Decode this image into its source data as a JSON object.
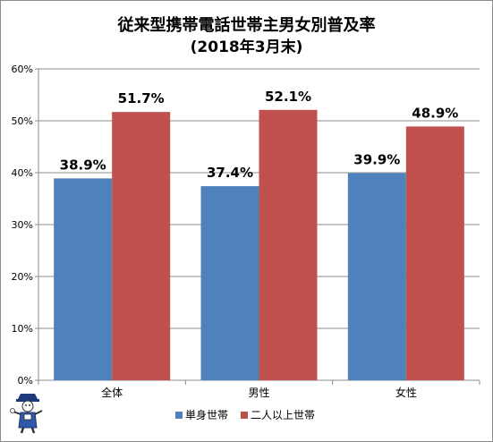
{
  "chart_data": {
    "type": "bar",
    "title": "従来型携帯電話世帯主男女別普及率",
    "subtitle": "(2018年3月末)",
    "categories": [
      "全体",
      "男性",
      "女性"
    ],
    "series": [
      {
        "name": "単身世帯",
        "values": [
          38.9,
          37.4,
          39.9
        ],
        "labels": [
          "38.9%",
          "37.4%",
          "39.9%"
        ]
      },
      {
        "name": "二人以上世帯",
        "values": [
          51.7,
          52.1,
          48.9
        ],
        "labels": [
          "51.7%",
          "52.1%",
          "48.9%"
        ]
      }
    ],
    "ylim": [
      0,
      60
    ],
    "yticks": [
      0,
      10,
      20,
      30,
      40,
      50,
      60
    ],
    "ytick_labels": [
      "0%",
      "10%",
      "20%",
      "30%",
      "40%",
      "50%",
      "60%"
    ],
    "xlabel": "",
    "ylabel": "",
    "grid": true,
    "legend_position": "bottom",
    "colors": [
      "#4f81bd",
      "#c0504d"
    ]
  }
}
